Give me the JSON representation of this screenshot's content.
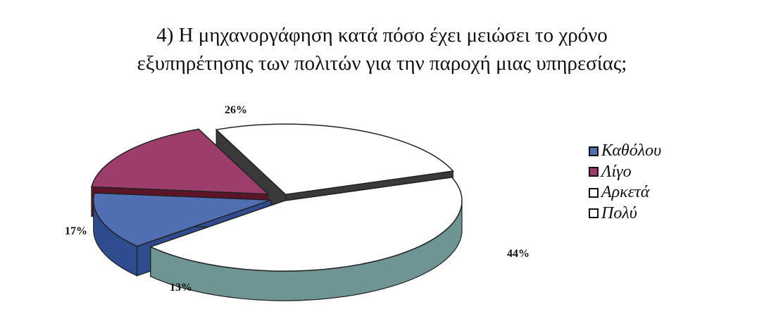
{
  "chart_data": {
    "type": "pie",
    "title_lines": [
      "4) Η μηχανοργάφηση κατά πόσο έχει μειώσει το χρόνο",
      "εξυπηρέτησης των πολιτών για την παροχή μιας υπηρεσίας;"
    ],
    "three_d": true,
    "legend_position": "right",
    "categories": [
      "Καθόλου",
      "Λίγο",
      "Αρκετά",
      "Πολύ"
    ],
    "values": [
      13,
      17,
      26,
      44
    ],
    "data_labels": [
      "13%",
      "17%",
      "26%",
      "44%"
    ],
    "colors": [
      "#4f6fb2",
      "#9c3d6b",
      "#ffffff",
      "#ffffff"
    ]
  }
}
